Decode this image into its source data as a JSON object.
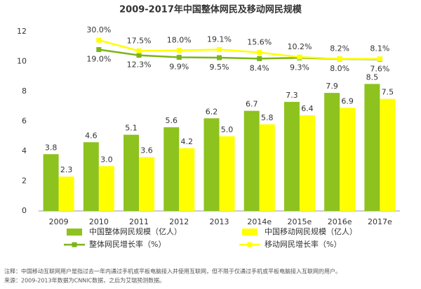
{
  "chart_data": {
    "type": "bar",
    "title": "2009-2017年中国整体网民及移动网民规模",
    "categories": [
      "2009",
      "2010",
      "2011",
      "2012",
      "2013",
      "2014e",
      "2015e",
      "2016e",
      "2017e"
    ],
    "series": [
      {
        "name": "中国整体网民规模（亿人）",
        "type": "bar",
        "color": "#8dc21f",
        "values": [
          3.8,
          4.6,
          5.1,
          5.6,
          6.2,
          6.7,
          7.3,
          7.9,
          8.5
        ],
        "value_labels": [
          "3.8",
          "4.6",
          "5.1",
          "5.6",
          "6.2",
          "6.7",
          "7.3",
          "7.9",
          "8.5"
        ]
      },
      {
        "name": "中国移动网民规模（亿人）",
        "type": "bar",
        "color": "#ffff00",
        "values": [
          2.3,
          3.0,
          3.6,
          4.2,
          5.0,
          5.8,
          6.4,
          6.9,
          7.5
        ],
        "value_labels": [
          "2.3",
          "3.0",
          "3.6",
          "4.2",
          "5.0",
          "5.8",
          "6.4",
          "6.9",
          "7.5"
        ]
      },
      {
        "name": "整体网民增长率（%）",
        "type": "line",
        "axis": "y2",
        "color": "#7cb518",
        "label_side": "below",
        "values": [
          null,
          19.0,
          12.3,
          9.9,
          9.5,
          8.4,
          9.3,
          8.0,
          7.6
        ],
        "value_labels": [
          null,
          "19.0%",
          "12.3%",
          "9.9%",
          "9.5%",
          "8.4%",
          "9.3%",
          "8.0%",
          "7.6%"
        ]
      },
      {
        "name": "移动网民增长率（%）",
        "type": "line",
        "axis": "y2",
        "color": "#ffff00",
        "label_side": "above",
        "values": [
          null,
          30.0,
          17.5,
          18.0,
          19.1,
          15.6,
          10.2,
          8.2,
          8.1
        ],
        "value_labels": [
          null,
          "30.0%",
          "17.5%",
          "18.0%",
          "19.1%",
          "15.6%",
          "10.2%",
          "8.2%",
          "8.1%"
        ]
      }
    ],
    "ylim": [
      0,
      12
    ],
    "yticks": [
      0,
      2,
      4,
      6,
      8,
      10,
      12
    ],
    "y2lim": [
      -170,
      40
    ],
    "grid": false,
    "legend": "bottom",
    "notes": [
      "注释：中国移动互联网用户是指过去一年内通过手机或平板电脑接入并使用互联网，但不限于仅通过手机或平板电脑接入互联网的用户。",
      "来源：2009-2013年数据为CNNIC数据，之后为艾瑞预测数据。"
    ]
  }
}
